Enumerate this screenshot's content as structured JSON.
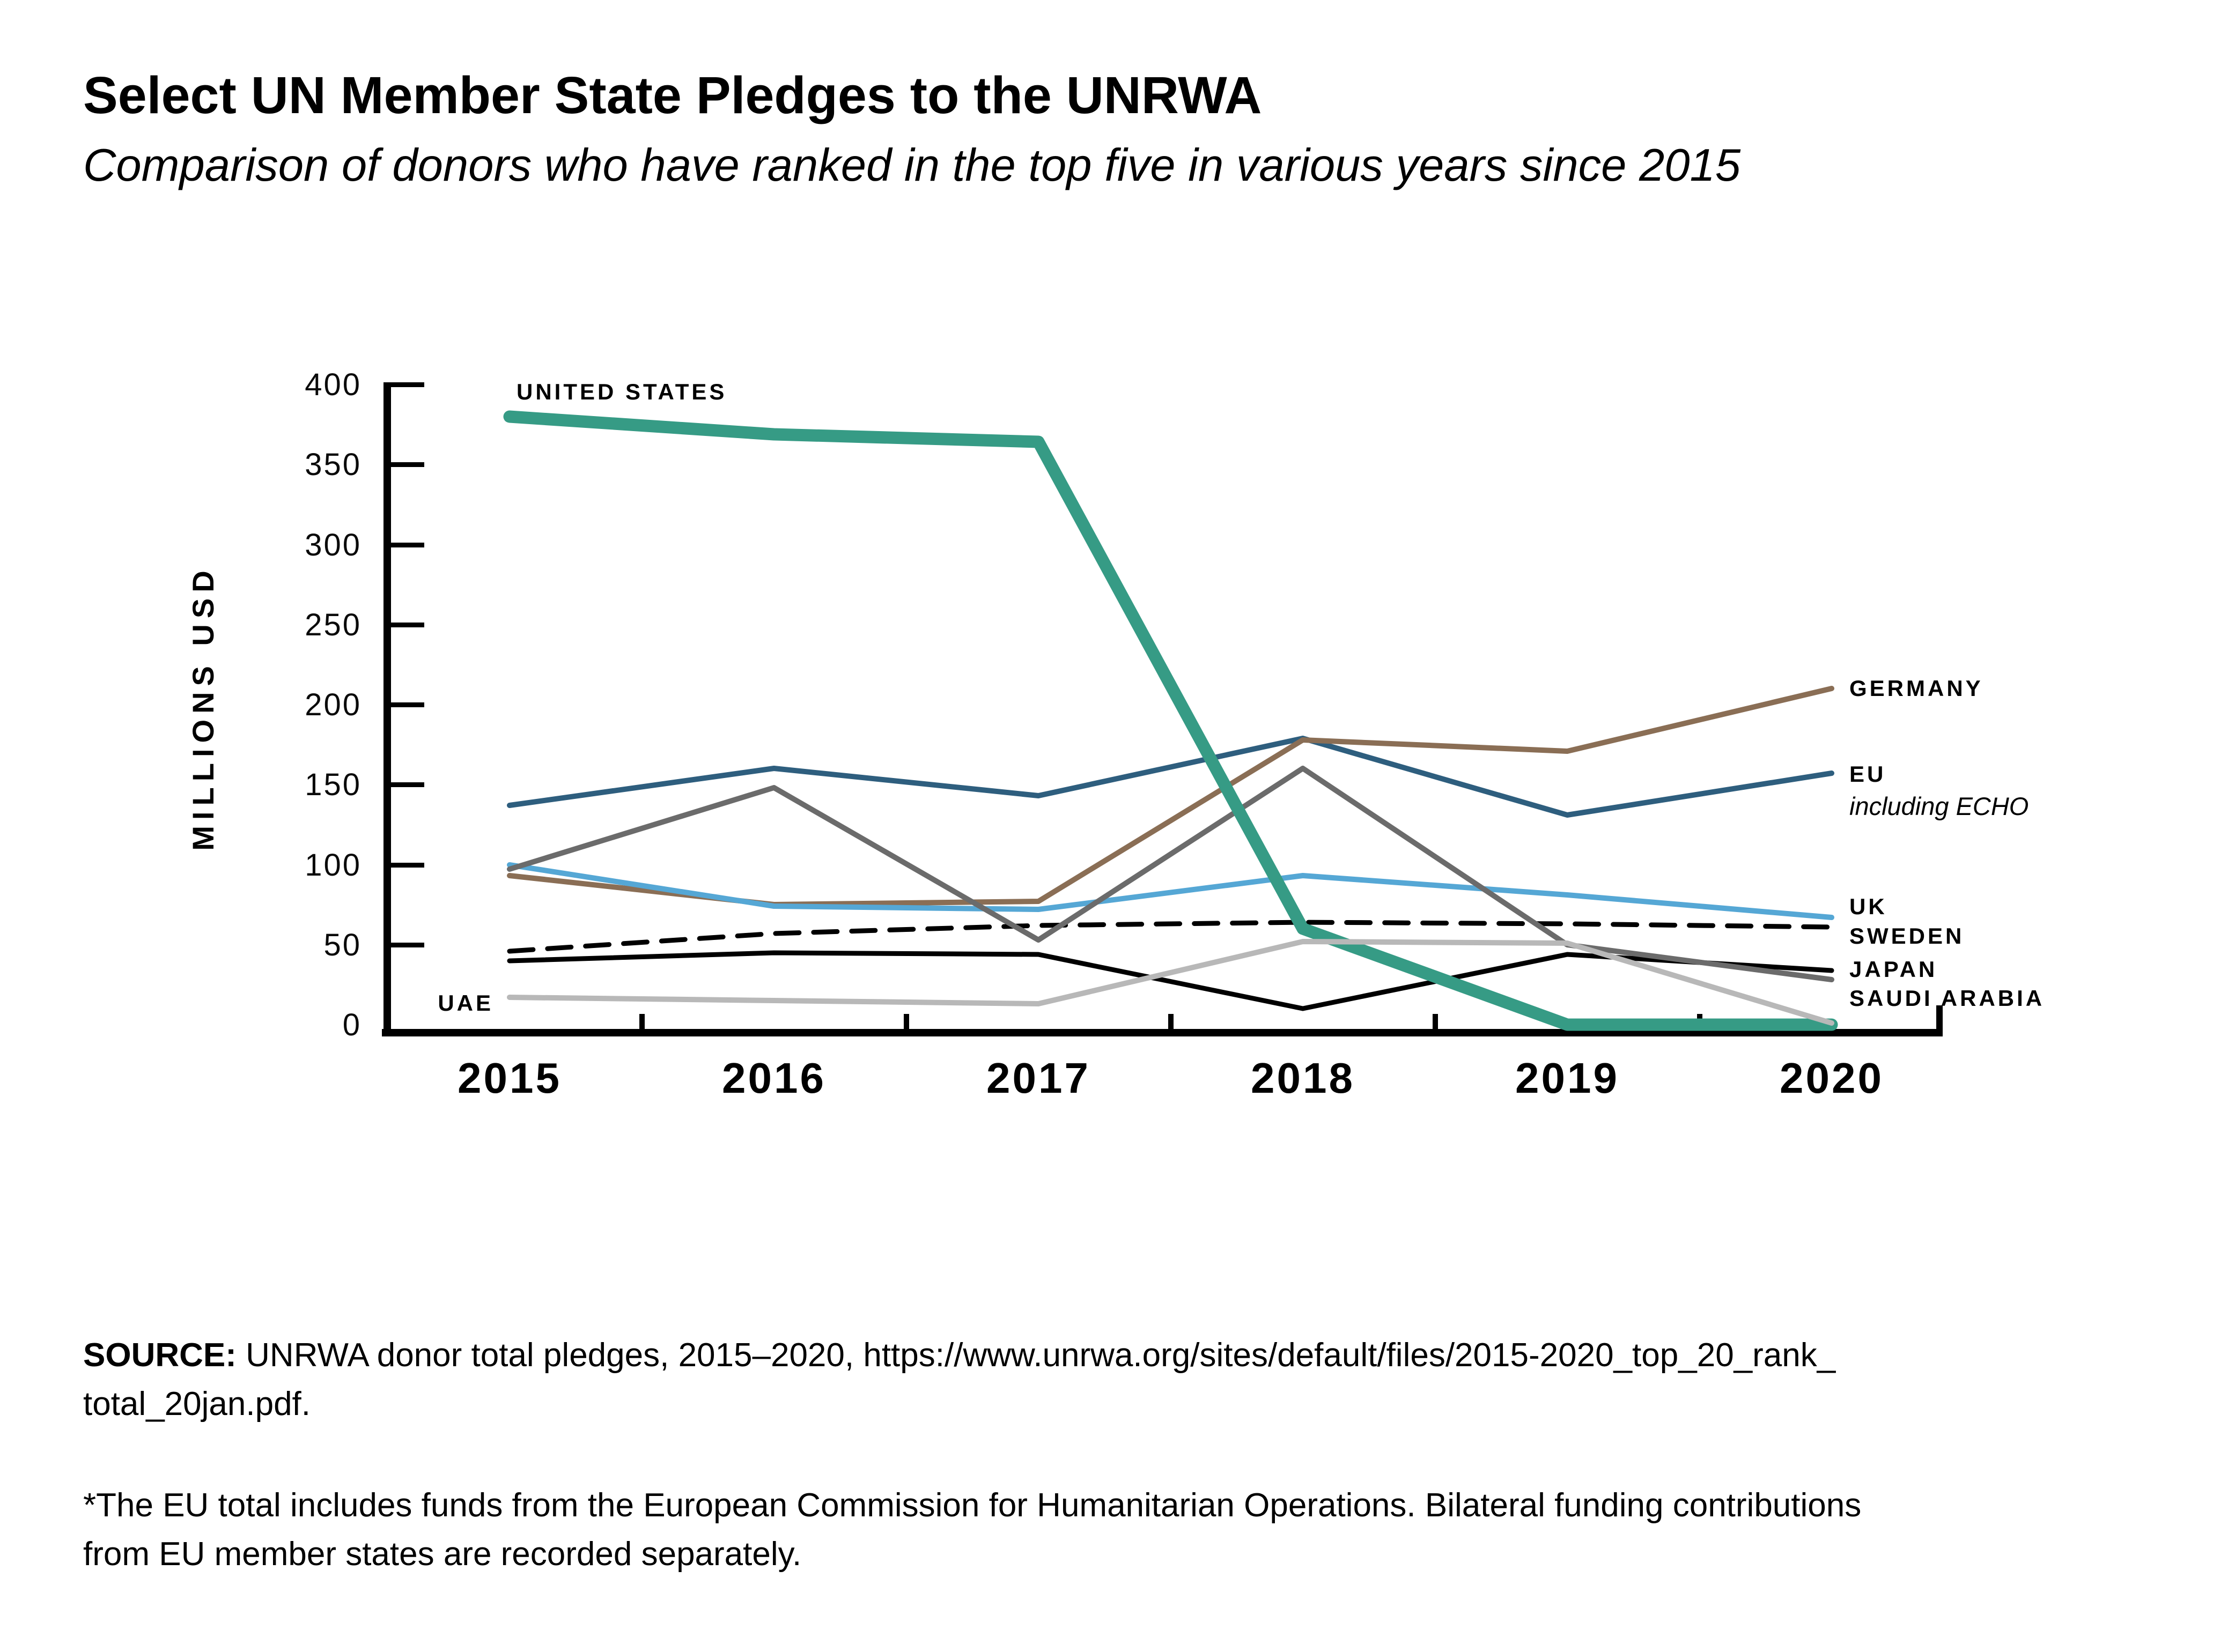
{
  "header": {
    "title": "Select UN Member State Pledges to the UNRWA",
    "subtitle": "Comparison of donors who have ranked in the top five in various years since 2015"
  },
  "chart_data": {
    "type": "line",
    "title": "Select UN Member State Pledges to the UNRWA",
    "subtitle": "Comparison of donors who have ranked in the top five in various years since 2015",
    "xlabel": "",
    "ylabel": "MILLIONS USD",
    "ylim": [
      0,
      400
    ],
    "y_ticks": [
      0,
      50,
      100,
      150,
      200,
      250,
      300,
      350,
      400
    ],
    "categories": [
      "2015",
      "2016",
      "2017",
      "2018",
      "2019",
      "2020"
    ],
    "grid": false,
    "legend_position": "annotated-line-ends",
    "series": [
      {
        "id": "eu",
        "name": "EU",
        "note": "including ECHO",
        "color": "#2E5E7E",
        "width": 10,
        "dash": "",
        "values": [
          137,
          160,
          143,
          179,
          131,
          157
        ]
      },
      {
        "id": "germany",
        "name": "GERMANY",
        "color": "#8A6E55",
        "width": 10,
        "dash": "",
        "values": [
          93,
          75,
          77,
          178,
          171,
          210
        ]
      },
      {
        "id": "uk",
        "name": "UK",
        "color": "#55A7D5",
        "width": 10,
        "dash": "",
        "values": [
          100,
          74,
          72,
          93,
          81,
          67
        ]
      },
      {
        "id": "sweden",
        "name": "SWEDEN",
        "color": "#000000",
        "width": 9,
        "dash": "44 27",
        "values": [
          46,
          57,
          62,
          64,
          63,
          61
        ]
      },
      {
        "id": "japan",
        "name": "JAPAN",
        "color": "#000000",
        "width": 9,
        "dash": "",
        "values": [
          40,
          45,
          44,
          10,
          44,
          34
        ]
      },
      {
        "id": "saudi_arabia",
        "name": "SAUDI ARABIA",
        "color": "#6B6B6B",
        "width": 10,
        "dash": "",
        "values": [
          97,
          148,
          53,
          160,
          50,
          28
        ]
      },
      {
        "id": "united_states",
        "name": "UNITED STATES",
        "color": "#369B85",
        "width": 23,
        "dash": "",
        "values": [
          380,
          369,
          364,
          60,
          0,
          0
        ]
      },
      {
        "id": "uae",
        "name": "UAE",
        "color": "#B8B8B8",
        "width": 10,
        "dash": "",
        "values": [
          17,
          15,
          13,
          52,
          51,
          1
        ]
      }
    ]
  },
  "source": {
    "label": "SOURCE:",
    "line1": "UNRWA donor total pledges, 2015–2020, https://www.unrwa.org/sites/default/files/2015-2020_top_20_rank_",
    "line2": "total_20jan.pdf."
  },
  "footnote": {
    "line1": "*The EU total includes funds from the European Commission for Humanitarian Operations. Bilateral funding contributions",
    "line2": "from EU member states are recorded separately."
  }
}
